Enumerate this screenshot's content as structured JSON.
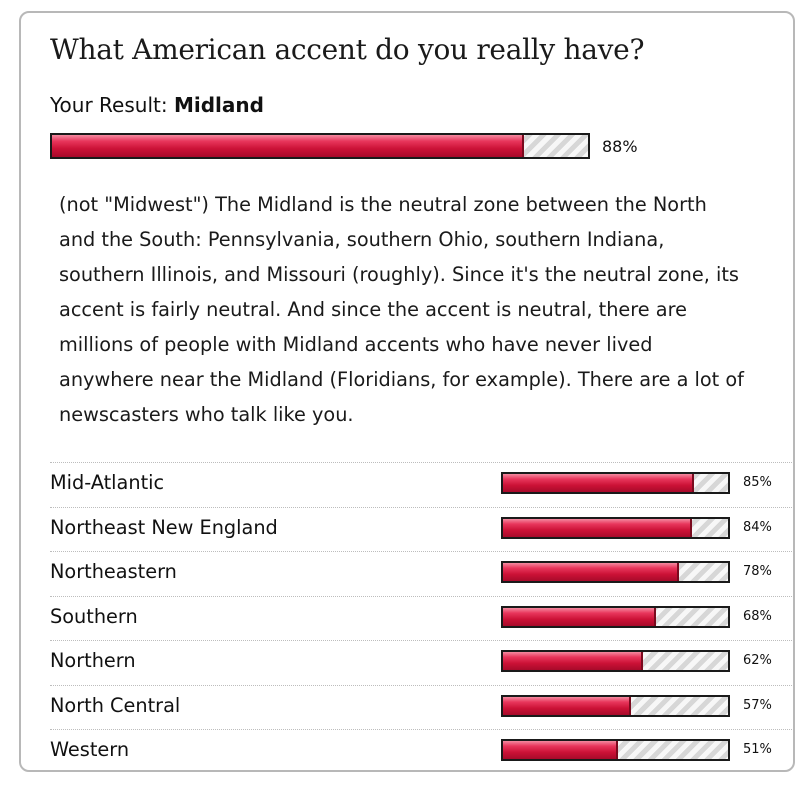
{
  "quiz": {
    "title": "What American accent do you really have?",
    "result_prefix": "Your Result:",
    "result_name": "Midland",
    "result_percent": "88%",
    "result_value": 88,
    "description": "(not \"Midwest\") The Midland is the neutral zone between the North and the South: Pennsylvania, southern Ohio, southern Indiana, southern Illinois, and Missouri (roughly). Since it's the neutral zone, its accent is fairly neutral. And since the accent is neutral, there are millions of people with Midland accents who have never lived anywhere near the Midland (Floridians, for example). There are a lot of newscasters who talk like you."
  },
  "other_results": [
    {
      "label": "Mid-Atlantic",
      "percent": "85%",
      "value": 85
    },
    {
      "label": "Northeast New England",
      "percent": "84%",
      "value": 84
    },
    {
      "label": "Northeastern",
      "percent": "78%",
      "value": 78
    },
    {
      "label": "Southern",
      "percent": "68%",
      "value": 68
    },
    {
      "label": "Northern",
      "percent": "62%",
      "value": 62
    },
    {
      "label": "North Central",
      "percent": "57%",
      "value": 57
    },
    {
      "label": "Western",
      "percent": "51%",
      "value": 51
    }
  ],
  "colors": {
    "bar_fill": "#cc1237",
    "bar_border": "#1a1a1a",
    "card_border": "#b8b8b8"
  }
}
